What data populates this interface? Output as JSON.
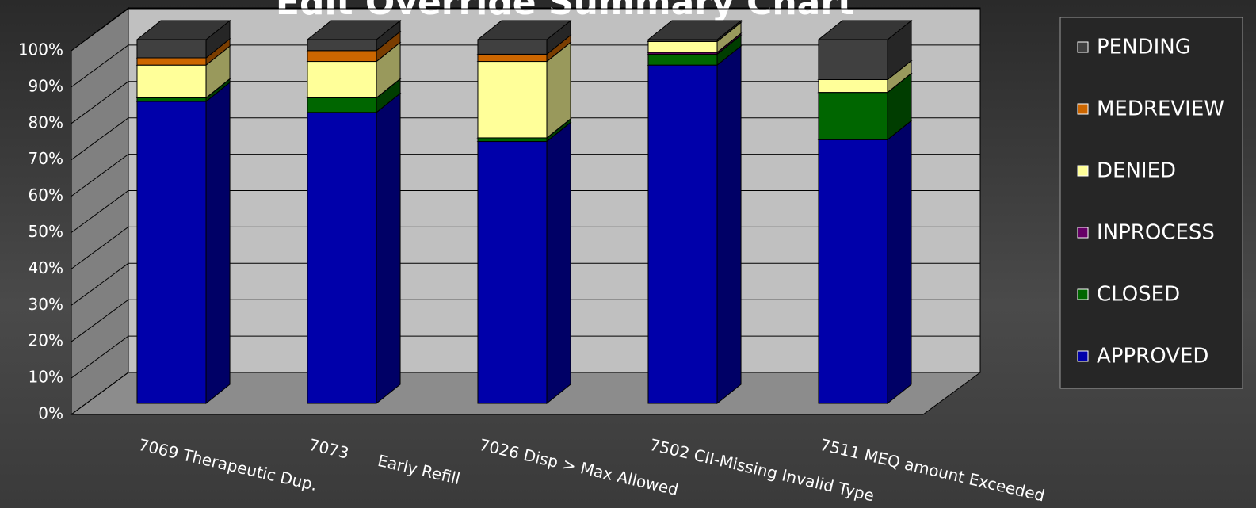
{
  "chart_data": {
    "type": "bar3d_stacked",
    "title": "Edit Override Summary Chart",
    "categories": [
      "7069 Therapeutic Dup.",
      "7073      Early Refill",
      "7026 Disp > Max Allowed",
      "7502 CII-Missing Invalid Type",
      "7511 MEQ amount Exceeded"
    ],
    "series": [
      {
        "name": "APPROVED",
        "color": "#0000aa",
        "values": [
          83,
          80,
          72,
          93,
          72.5
        ]
      },
      {
        "name": "CLOSED",
        "color": "#006600",
        "values": [
          1,
          4,
          1,
          3,
          13
        ]
      },
      {
        "name": "INPROCESS",
        "color": "#660066",
        "values": [
          0,
          0,
          0,
          0.5,
          0
        ]
      },
      {
        "name": "DENIED",
        "color": "#ffff99",
        "values": [
          9,
          10,
          21,
          3,
          3.5
        ]
      },
      {
        "name": "MEDREVIEW",
        "color": "#cc6600",
        "values": [
          2,
          3,
          2,
          0,
          0
        ]
      },
      {
        "name": "PENDING",
        "color": "#404040",
        "values": [
          5,
          3,
          4,
          0.5,
          11
        ]
      }
    ],
    "ylim": [
      0,
      100
    ],
    "yticks": [
      {
        "value": 0,
        "label": "0%"
      },
      {
        "value": 10,
        "label": "10%"
      },
      {
        "value": 20,
        "label": "20%"
      },
      {
        "value": 30,
        "label": "30%"
      },
      {
        "value": 40,
        "label": "40%"
      },
      {
        "value": 50,
        "label": "50%"
      },
      {
        "value": 60,
        "label": "60%"
      },
      {
        "value": 70,
        "label": "70%"
      },
      {
        "value": 80,
        "label": "80%"
      },
      {
        "value": 90,
        "label": "90%"
      },
      {
        "value": 100,
        "label": "100%"
      }
    ],
    "grid": true,
    "legend": "right"
  }
}
